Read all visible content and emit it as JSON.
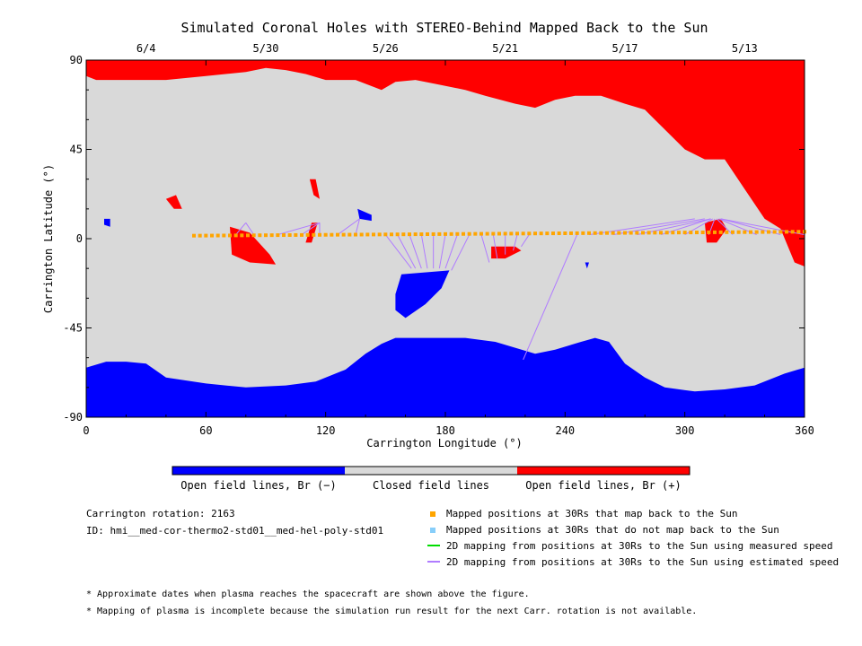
{
  "chart_data": {
    "type": "scatter",
    "title": "Simulated Coronal Holes with STEREO-Behind Mapped Back to the Sun",
    "xlabel": "Carrington Longitude (°)",
    "ylabel": "Carrington Latitude (°)",
    "xlim": [
      0,
      360
    ],
    "ylim": [
      -90,
      90
    ],
    "xticks": [
      "0",
      "60",
      "120",
      "180",
      "240",
      "300",
      "360"
    ],
    "yticks": [
      "90",
      "45",
      "0",
      "-45",
      "-90"
    ],
    "top_dates": [
      {
        "label": "6/4",
        "lon": 30
      },
      {
        "label": "5/30",
        "lon": 90
      },
      {
        "label": "5/26",
        "lon": 150
      },
      {
        "label": "5/21",
        "lon": 210
      },
      {
        "label": "5/17",
        "lon": 270
      },
      {
        "label": "5/13",
        "lon": 330
      }
    ],
    "colorbar": {
      "labels": [
        "Open field lines, Br (−)",
        "Closed field lines",
        "Open field lines, Br (+)"
      ],
      "colors": [
        "#0000ff",
        "#d9d9d9",
        "#ff0000"
      ]
    },
    "mapped_points": {
      "lon_start": 54,
      "lon_end": 360,
      "lon_step": 3,
      "lat_start": 1.5,
      "lat_end": 3.5,
      "color": "#ffa500"
    },
    "mapping_lines": [
      {
        "from": [
          75,
          2
        ],
        "to": [
          80,
          8
        ]
      },
      {
        "from": [
          84,
          2
        ],
        "to": [
          80,
          8
        ]
      },
      {
        "from": [
          96,
          2
        ],
        "to": [
          117,
          8
        ]
      },
      {
        "from": [
          108,
          2
        ],
        "to": [
          117,
          8
        ]
      },
      {
        "from": [
          117,
          2
        ],
        "to": [
          117,
          8
        ]
      },
      {
        "from": [
          126,
          2
        ],
        "to": [
          137,
          10
        ]
      },
      {
        "from": [
          135,
          2
        ],
        "to": [
          137,
          10
        ]
      },
      {
        "from": [
          150,
          2
        ],
        "to": [
          163,
          -15
        ]
      },
      {
        "from": [
          156,
          2
        ],
        "to": [
          165,
          -15
        ]
      },
      {
        "from": [
          162,
          2
        ],
        "to": [
          168,
          -15
        ]
      },
      {
        "from": [
          168,
          2
        ],
        "to": [
          171,
          -15
        ]
      },
      {
        "from": [
          174,
          2
        ],
        "to": [
          174,
          -15
        ]
      },
      {
        "from": [
          180,
          2
        ],
        "to": [
          177,
          -15
        ]
      },
      {
        "from": [
          186,
          2
        ],
        "to": [
          180,
          -15
        ]
      },
      {
        "from": [
          192,
          2
        ],
        "to": [
          183,
          -16
        ]
      },
      {
        "from": [
          198,
          2
        ],
        "to": [
          202,
          -12
        ]
      },
      {
        "from": [
          204,
          2
        ],
        "to": [
          206,
          -10
        ]
      },
      {
        "from": [
          210,
          2
        ],
        "to": [
          210,
          -8
        ]
      },
      {
        "from": [
          216,
          2
        ],
        "to": [
          214,
          -6
        ]
      },
      {
        "from": [
          222,
          2
        ],
        "to": [
          218,
          -4
        ]
      },
      {
        "from": [
          246,
          2
        ],
        "to": [
          219,
          -61
        ]
      },
      {
        "from": [
          252,
          2
        ],
        "to": [
          305,
          10
        ]
      },
      {
        "from": [
          264,
          2
        ],
        "to": [
          310,
          10
        ]
      },
      {
        "from": [
          276,
          2
        ],
        "to": [
          313,
          10
        ]
      },
      {
        "from": [
          288,
          2
        ],
        "to": [
          313,
          10
        ]
      },
      {
        "from": [
          300,
          2
        ],
        "to": [
          314,
          10
        ]
      },
      {
        "from": [
          312,
          2
        ],
        "to": [
          315,
          10
        ]
      },
      {
        "from": [
          324,
          2
        ],
        "to": [
          316,
          10
        ]
      },
      {
        "from": [
          336,
          2
        ],
        "to": [
          317,
          10
        ]
      },
      {
        "from": [
          348,
          2
        ],
        "to": [
          318,
          10
        ]
      },
      {
        "from": [
          360,
          2
        ],
        "to": [
          318,
          10
        ]
      }
    ],
    "mapping_color": "#b07cff",
    "regions": {
      "north_positive": [
        [
          0,
          90
        ],
        [
          360,
          90
        ],
        [
          360,
          -14
        ],
        [
          355,
          -12
        ],
        [
          348,
          5
        ],
        [
          340,
          10
        ],
        [
          330,
          25
        ],
        [
          320,
          40
        ],
        [
          310,
          40
        ],
        [
          300,
          45
        ],
        [
          290,
          55
        ],
        [
          280,
          65
        ],
        [
          270,
          68
        ],
        [
          258,
          72
        ],
        [
          245,
          72
        ],
        [
          235,
          70
        ],
        [
          225,
          66
        ],
        [
          215,
          68
        ],
        [
          200,
          72
        ],
        [
          190,
          75
        ],
        [
          175,
          78
        ],
        [
          165,
          80
        ],
        [
          155,
          79
        ],
        [
          148,
          75
        ],
        [
          135,
          80
        ],
        [
          120,
          80
        ],
        [
          110,
          83
        ],
        [
          100,
          85
        ],
        [
          90,
          86
        ],
        [
          80,
          84
        ],
        [
          60,
          82
        ],
        [
          40,
          80
        ],
        [
          20,
          80
        ],
        [
          5,
          80
        ],
        [
          0,
          82
        ]
      ],
      "south_negative": [
        [
          0,
          -90
        ],
        [
          360,
          -90
        ],
        [
          360,
          -65
        ],
        [
          350,
          -68
        ],
        [
          335,
          -74
        ],
        [
          320,
          -76
        ],
        [
          305,
          -77
        ],
        [
          290,
          -75
        ],
        [
          280,
          -70
        ],
        [
          270,
          -63
        ],
        [
          262,
          -52
        ],
        [
          255,
          -50
        ],
        [
          248,
          -52
        ],
        [
          235,
          -56
        ],
        [
          225,
          -58
        ],
        [
          205,
          -52
        ],
        [
          190,
          -50
        ],
        [
          175,
          -50
        ],
        [
          155,
          -50
        ],
        [
          148,
          -53
        ],
        [
          140,
          -58
        ],
        [
          130,
          -66
        ],
        [
          115,
          -72
        ],
        [
          100,
          -74
        ],
        [
          80,
          -75
        ],
        [
          60,
          -73
        ],
        [
          40,
          -70
        ],
        [
          30,
          -63
        ],
        [
          20,
          -62
        ],
        [
          10,
          -62
        ],
        [
          0,
          -65
        ]
      ],
      "mid_negative": [
        [
          158,
          -18
        ],
        [
          182,
          -16
        ],
        [
          178,
          -25
        ],
        [
          170,
          -33
        ],
        [
          160,
          -40
        ],
        [
          155,
          -36
        ],
        [
          155,
          -28
        ]
      ],
      "patch_negative_1": [
        [
          9,
          10
        ],
        [
          12,
          10
        ],
        [
          12,
          6
        ],
        [
          9,
          7
        ]
      ],
      "patch_negative_2": [
        [
          136,
          15
        ],
        [
          143,
          12
        ],
        [
          143,
          9
        ],
        [
          137,
          10
        ]
      ],
      "patch_negative_3": [
        [
          250,
          -12
        ],
        [
          252,
          -12
        ],
        [
          251,
          -15
        ]
      ],
      "patch_positive_1": [
        [
          72,
          6
        ],
        [
          82,
          3
        ],
        [
          92,
          -8
        ],
        [
          95,
          -13
        ],
        [
          82,
          -12
        ],
        [
          73,
          -8
        ]
      ],
      "patch_positive_2": [
        [
          203,
          -4
        ],
        [
          215,
          -4
        ],
        [
          218,
          -6
        ],
        [
          210,
          -10
        ],
        [
          203,
          -10
        ]
      ],
      "patch_positive_3": [
        [
          310,
          8
        ],
        [
          318,
          10
        ],
        [
          321,
          5
        ],
        [
          316,
          -2
        ],
        [
          311,
          -2
        ]
      ],
      "filament_1": [
        [
          40,
          20
        ],
        [
          44,
          15
        ],
        [
          48,
          15
        ],
        [
          45,
          22
        ]
      ],
      "filament_2": [
        [
          110,
          -2
        ],
        [
          113,
          -2
        ],
        [
          116,
          8
        ],
        [
          113,
          8
        ]
      ],
      "filament_3": [
        [
          112,
          30
        ],
        [
          115,
          30
        ],
        [
          117,
          20
        ],
        [
          114,
          22
        ]
      ]
    }
  },
  "info": {
    "carrington_rotation": "Carrington rotation: 2163",
    "run_id": "ID: hmi__med-cor-thermo2-std01__med-hel-poly-std01"
  },
  "legend": [
    {
      "label": "Mapped positions at 30Rs that map back to the Sun",
      "kind": "square",
      "color": "#ffa500"
    },
    {
      "label": "Mapped positions at 30Rs that do not map back to the Sun",
      "kind": "square",
      "color": "#87cefa"
    },
    {
      "label": "2D mapping from positions at 30Rs to the Sun using measured speed",
      "kind": "line",
      "color": "#00dd00"
    },
    {
      "label": "2D mapping from positions at 30Rs to the Sun using estimated speed",
      "kind": "line",
      "color": "#b07cff"
    }
  ],
  "notes": [
    "* Approximate dates when plasma reaches the spacecraft are shown above the figure.",
    "* Mapping of plasma is incomplete because the simulation run result for the next Carr. rotation is not available."
  ]
}
